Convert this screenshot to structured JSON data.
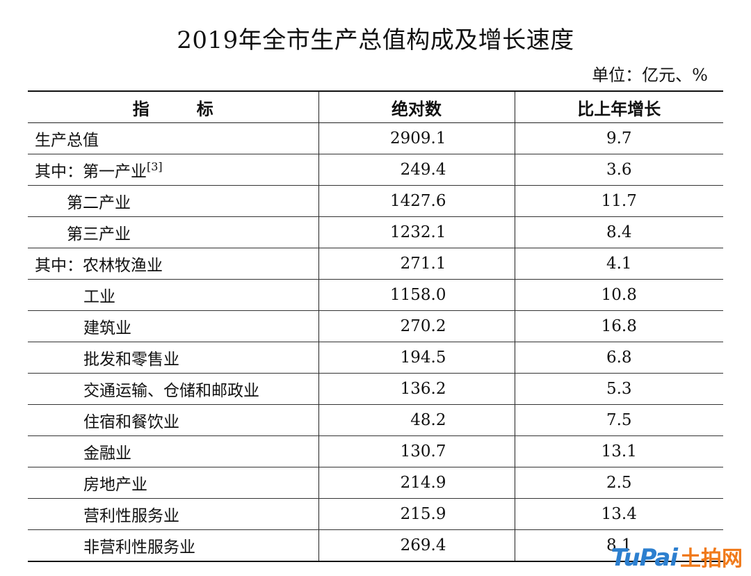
{
  "title": "2019年全市生产总值构成及增长速度",
  "unit": "单位：亿元、%",
  "table": {
    "headers": [
      "指　标",
      "绝对数",
      "比上年增长"
    ],
    "rows": [
      {
        "name": "生产总值",
        "note": "",
        "value": "2909.1",
        "growth": "9.7",
        "level": 0
      },
      {
        "name": "其中：第一产业",
        "note": "[3]",
        "value": "249.4",
        "growth": "3.6",
        "level": 0
      },
      {
        "name": "第二产业",
        "note": "",
        "value": "1427.6",
        "growth": "11.7",
        "level": 1
      },
      {
        "name": "第三产业",
        "note": "",
        "value": "1232.1",
        "growth": "8.4",
        "level": 1
      },
      {
        "name": "其中：农林牧渔业",
        "note": "",
        "value": "271.1",
        "growth": "4.1",
        "level": 0
      },
      {
        "name": "工业",
        "note": "",
        "value": "1158.0",
        "growth": "10.8",
        "level": 2
      },
      {
        "name": "建筑业",
        "note": "",
        "value": "270.2",
        "growth": "16.8",
        "level": 2
      },
      {
        "name": "批发和零售业",
        "note": "",
        "value": "194.5",
        "growth": "6.8",
        "level": 2
      },
      {
        "name": "交通运输、仓储和邮政业",
        "note": "",
        "value": "136.2",
        "growth": "5.3",
        "level": 2
      },
      {
        "name": "住宿和餐饮业",
        "note": "",
        "value": "48.2",
        "growth": "7.5",
        "level": 2
      },
      {
        "name": "金融业",
        "note": "",
        "value": "130.7",
        "growth": "13.1",
        "level": 2
      },
      {
        "name": "房地产业",
        "note": "",
        "value": "214.9",
        "growth": "2.5",
        "level": 2
      },
      {
        "name": "营利性服务业",
        "note": "",
        "value": "215.9",
        "growth": "13.4",
        "level": 2
      },
      {
        "name": "非营利性服务业",
        "note": "",
        "value": "269.4",
        "growth": "8.1",
        "level": 2
      }
    ]
  },
  "watermark": {
    "latin": "TuPai",
    "cn": "土拍网"
  }
}
